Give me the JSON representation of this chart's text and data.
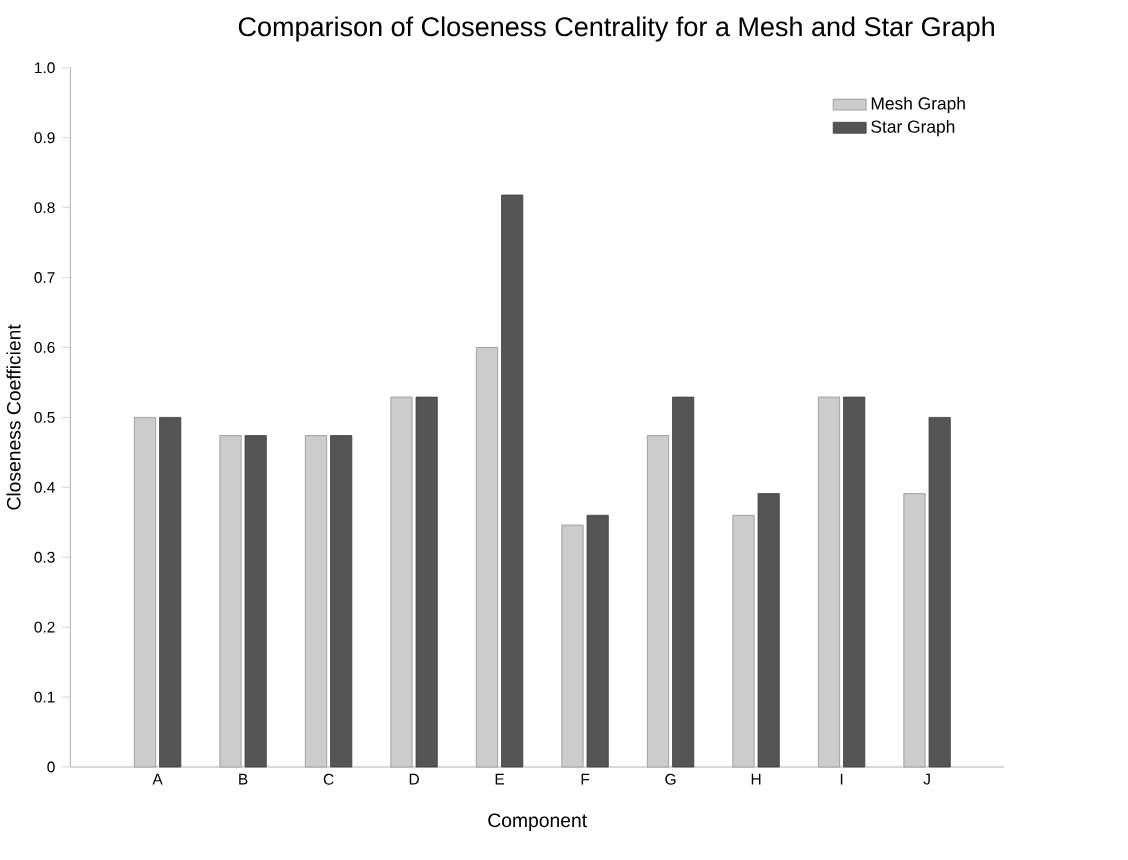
{
  "chart_data": {
    "type": "bar",
    "title": "Comparison of Closeness Centrality for a Mesh and Star Graph",
    "xlabel": "Component",
    "ylabel": "Closeness Coefficient",
    "categories": [
      "A",
      "B",
      "C",
      "D",
      "E",
      "F",
      "G",
      "H",
      "I",
      "J"
    ],
    "series": [
      {
        "name": "Mesh Graph",
        "color": "#cccccc",
        "values": [
          0.5,
          0.474,
          0.474,
          0.529,
          0.6,
          0.346,
          0.474,
          0.36,
          0.529,
          0.391
        ]
      },
      {
        "name": "Star Graph",
        "color": "#555555",
        "values": [
          0.5,
          0.474,
          0.474,
          0.529,
          0.818,
          0.36,
          0.529,
          0.391,
          0.529,
          0.5
        ]
      }
    ],
    "ylim": [
      0,
      1
    ],
    "yticks": [
      0,
      0.1,
      0.2,
      0.3,
      0.4,
      0.5,
      0.6,
      0.7,
      0.8,
      0.9,
      {
        "value": 1,
        "label": "1.0"
      }
    ],
    "grid": false,
    "legend": "top right"
  }
}
